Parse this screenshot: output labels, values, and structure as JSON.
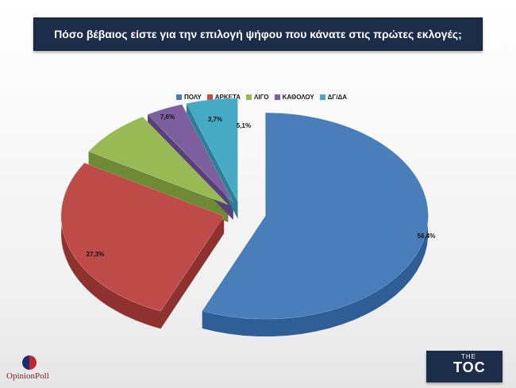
{
  "header": {
    "title": "Πόσο βέβαιος είστε για την επιλογή ψήφου που κάνατε στις πρώτες εκλογές;"
  },
  "chart_data": {
    "type": "pie",
    "title": "Πόσο βέβαιος είστε για την επιλογή ψήφου που κάνατε στις πρώτες εκλογές;",
    "legend_position": "top",
    "slices": [
      {
        "label": "ΠΟΛΥ",
        "value": 56.4,
        "display": "56,4%",
        "color": "#4a7ebb",
        "side": "#2f5d95"
      },
      {
        "label": "ΑΡΚΕΤΑ",
        "value": 27.3,
        "display": "27,3%",
        "color": "#be4b48",
        "side": "#8e3230"
      },
      {
        "label": "ΛΙΓΟ",
        "value": 7.6,
        "display": "7,6%",
        "color": "#98b954",
        "side": "#6f8a37"
      },
      {
        "label": "ΚΑΘΟΛΟΥ",
        "value": 3.7,
        "display": "3,7%",
        "color": "#7d5fa0",
        "side": "#58407a"
      },
      {
        "label": "ΔΓ/ΔΑ",
        "value": 5.1,
        "display": "5,1%",
        "color": "#46aac5",
        "side": "#2d7f96"
      }
    ]
  },
  "footer": {
    "left_logo_text": "OpinionPoll",
    "right_logo_small": "THE",
    "right_logo_big": "TOC"
  }
}
